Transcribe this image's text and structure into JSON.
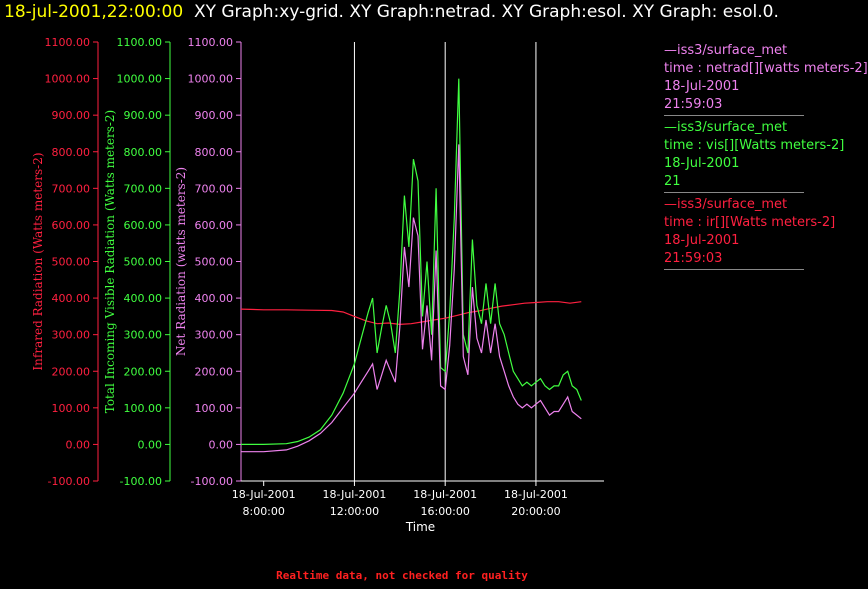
{
  "header": {
    "timestamp": "18-jul-2001,22:00:00",
    "graphs": "XY Graph:xy-grid.  XY Graph:netrad.  XY Graph:esol.  XY Graph: esol.0."
  },
  "footer": "Realtime data, not checked for quality",
  "colors": {
    "ir": "#ff2040",
    "vis": "#40ff40",
    "net": "#ee82ee",
    "grid": "#ffffff",
    "axis_x": "#ffffff"
  },
  "legend": [
    {
      "source": "—iss3/surface_met",
      "field": "time : netrad[][watts meters-2]",
      "date": "18-Jul-2001",
      "time": "21:59:03",
      "color": "#ee82ee"
    },
    {
      "source": "—iss3/surface_met",
      "field": "time : vis[][Watts meters-2]",
      "date": "18-Jul-2001",
      "time": "21",
      "color": "#40ff40"
    },
    {
      "source": "—iss3/surface_met",
      "field": "time : ir[][Watts meters-2]",
      "date": "18-Jul-2001",
      "time": "21:59:03",
      "color": "#ff2040"
    }
  ],
  "chart_data": {
    "type": "line",
    "xlabel": "Time",
    "xlim": [
      7.0,
      23.0
    ],
    "x_ticks": [
      {
        "value": 8,
        "date": "18-Jul-2001",
        "time": "8:00:00"
      },
      {
        "value": 12,
        "date": "18-Jul-2001",
        "time": "12:00:00"
      },
      {
        "value": 16,
        "date": "18-Jul-2001",
        "time": "16:00:00"
      },
      {
        "value": 20,
        "date": "18-Jul-2001",
        "time": "20:00:00"
      }
    ],
    "x_unit": "hour of day, 18-Jul-2001",
    "grid": "vertical lines at x ticks 12:00, 16:00, 20:00",
    "y_axes": [
      {
        "label": "Infrared Radiation (Watts meters-2)",
        "ylim": [
          -100,
          1100
        ],
        "color": "#ff2040"
      },
      {
        "label": "Total Incoming Visible Radiation (Watts meters-2)",
        "ylim": [
          -100,
          1100
        ],
        "color": "#40ff40"
      },
      {
        "label": "Net Radiation (watts meters-2)",
        "ylim": [
          -100,
          1100
        ],
        "color": "#ee82ee"
      }
    ],
    "y_ticks": [
      "-100.00",
      "0.00",
      "100.00",
      "200.00",
      "300.00",
      "400.00",
      "500.00",
      "600.00",
      "700.00",
      "800.00",
      "900.00",
      "1000.00",
      "1100.00"
    ],
    "series": [
      {
        "key": "ir",
        "points": [
          [
            7.0,
            370
          ],
          [
            8.0,
            368
          ],
          [
            9.0,
            368
          ],
          [
            10.0,
            367
          ],
          [
            11.0,
            366
          ],
          [
            11.5,
            362
          ],
          [
            12.0,
            350
          ],
          [
            12.5,
            338
          ],
          [
            13.0,
            330
          ],
          [
            13.5,
            332
          ],
          [
            14.0,
            328
          ],
          [
            14.5,
            330
          ],
          [
            15.0,
            335
          ],
          [
            15.5,
            340
          ],
          [
            16.0,
            345
          ],
          [
            16.5,
            352
          ],
          [
            17.0,
            360
          ],
          [
            17.5,
            365
          ],
          [
            18.0,
            372
          ],
          [
            18.5,
            378
          ],
          [
            19.0,
            382
          ],
          [
            19.5,
            386
          ],
          [
            20.0,
            388
          ],
          [
            20.5,
            390
          ],
          [
            21.0,
            390
          ],
          [
            21.5,
            386
          ],
          [
            22.0,
            390
          ]
        ]
      },
      {
        "key": "vis",
        "points": [
          [
            7.0,
            0
          ],
          [
            8.0,
            0
          ],
          [
            9.0,
            2
          ],
          [
            9.5,
            8
          ],
          [
            10.0,
            20
          ],
          [
            10.5,
            40
          ],
          [
            11.0,
            80
          ],
          [
            11.5,
            140
          ],
          [
            12.0,
            220
          ],
          [
            12.3,
            290
          ],
          [
            12.6,
            360
          ],
          [
            12.8,
            400
          ],
          [
            13.0,
            250
          ],
          [
            13.2,
            320
          ],
          [
            13.4,
            380
          ],
          [
            13.6,
            330
          ],
          [
            13.8,
            250
          ],
          [
            14.0,
            420
          ],
          [
            14.2,
            680
          ],
          [
            14.4,
            540
          ],
          [
            14.6,
            780
          ],
          [
            14.8,
            720
          ],
          [
            15.0,
            350
          ],
          [
            15.2,
            500
          ],
          [
            15.4,
            300
          ],
          [
            15.6,
            700
          ],
          [
            15.8,
            210
          ],
          [
            16.0,
            200
          ],
          [
            16.2,
            360
          ],
          [
            16.4,
            620
          ],
          [
            16.6,
            1000
          ],
          [
            16.8,
            300
          ],
          [
            17.0,
            250
          ],
          [
            17.2,
            560
          ],
          [
            17.4,
            380
          ],
          [
            17.6,
            330
          ],
          [
            17.8,
            440
          ],
          [
            18.0,
            330
          ],
          [
            18.2,
            440
          ],
          [
            18.4,
            330
          ],
          [
            18.6,
            300
          ],
          [
            18.8,
            250
          ],
          [
            19.0,
            200
          ],
          [
            19.2,
            180
          ],
          [
            19.4,
            160
          ],
          [
            19.6,
            170
          ],
          [
            19.8,
            160
          ],
          [
            20.0,
            170
          ],
          [
            20.2,
            180
          ],
          [
            20.4,
            160
          ],
          [
            20.6,
            150
          ],
          [
            20.8,
            160
          ],
          [
            21.0,
            160
          ],
          [
            21.2,
            190
          ],
          [
            21.4,
            200
          ],
          [
            21.6,
            160
          ],
          [
            21.8,
            150
          ],
          [
            22.0,
            120
          ]
        ]
      },
      {
        "key": "net",
        "points": [
          [
            7.0,
            -20
          ],
          [
            8.0,
            -20
          ],
          [
            9.0,
            -15
          ],
          [
            9.5,
            -5
          ],
          [
            10.0,
            10
          ],
          [
            10.5,
            30
          ],
          [
            11.0,
            60
          ],
          [
            11.5,
            100
          ],
          [
            12.0,
            140
          ],
          [
            12.3,
            170
          ],
          [
            12.6,
            200
          ],
          [
            12.8,
            220
          ],
          [
            13.0,
            150
          ],
          [
            13.2,
            190
          ],
          [
            13.4,
            230
          ],
          [
            13.6,
            200
          ],
          [
            13.8,
            170
          ],
          [
            14.0,
            320
          ],
          [
            14.2,
            540
          ],
          [
            14.4,
            430
          ],
          [
            14.6,
            620
          ],
          [
            14.8,
            570
          ],
          [
            15.0,
            260
          ],
          [
            15.2,
            380
          ],
          [
            15.4,
            230
          ],
          [
            15.6,
            530
          ],
          [
            15.8,
            160
          ],
          [
            16.0,
            150
          ],
          [
            16.2,
            270
          ],
          [
            16.4,
            480
          ],
          [
            16.6,
            820
          ],
          [
            16.8,
            240
          ],
          [
            17.0,
            190
          ],
          [
            17.2,
            430
          ],
          [
            17.4,
            290
          ],
          [
            17.6,
            250
          ],
          [
            17.8,
            340
          ],
          [
            18.0,
            250
          ],
          [
            18.2,
            330
          ],
          [
            18.4,
            240
          ],
          [
            18.6,
            200
          ],
          [
            18.8,
            160
          ],
          [
            19.0,
            130
          ],
          [
            19.2,
            110
          ],
          [
            19.4,
            100
          ],
          [
            19.6,
            110
          ],
          [
            19.8,
            100
          ],
          [
            20.0,
            110
          ],
          [
            20.2,
            120
          ],
          [
            20.4,
            100
          ],
          [
            20.6,
            80
          ],
          [
            20.8,
            90
          ],
          [
            21.0,
            90
          ],
          [
            21.2,
            110
          ],
          [
            21.4,
            130
          ],
          [
            21.6,
            90
          ],
          [
            21.8,
            80
          ],
          [
            22.0,
            70
          ]
        ]
      }
    ]
  }
}
